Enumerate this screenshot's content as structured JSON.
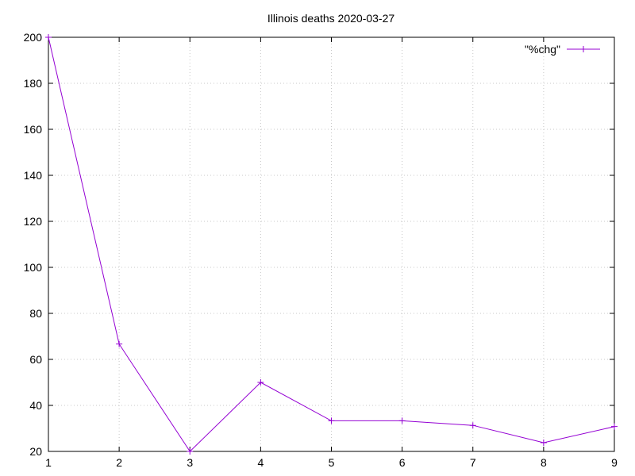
{
  "chart_data": {
    "type": "line",
    "title": "Illinois deaths 2020-03-27",
    "xlabel": "",
    "ylabel": "",
    "xlim": [
      1,
      9
    ],
    "ylim": [
      20,
      200
    ],
    "x_ticks": [
      1,
      2,
      3,
      4,
      5,
      6,
      7,
      8,
      9
    ],
    "y_ticks": [
      20,
      40,
      60,
      80,
      100,
      120,
      140,
      160,
      180,
      200
    ],
    "grid": true,
    "legend_position": "top-right",
    "series": [
      {
        "name": "\"%chg\"",
        "color": "#9400d3",
        "marker": "plus",
        "x": [
          1,
          2,
          3,
          4,
          5,
          6,
          7,
          8,
          9
        ],
        "y": [
          200,
          66.7,
          20,
          50,
          33.3,
          33.3,
          31.3,
          23.8,
          30.8
        ]
      }
    ]
  }
}
